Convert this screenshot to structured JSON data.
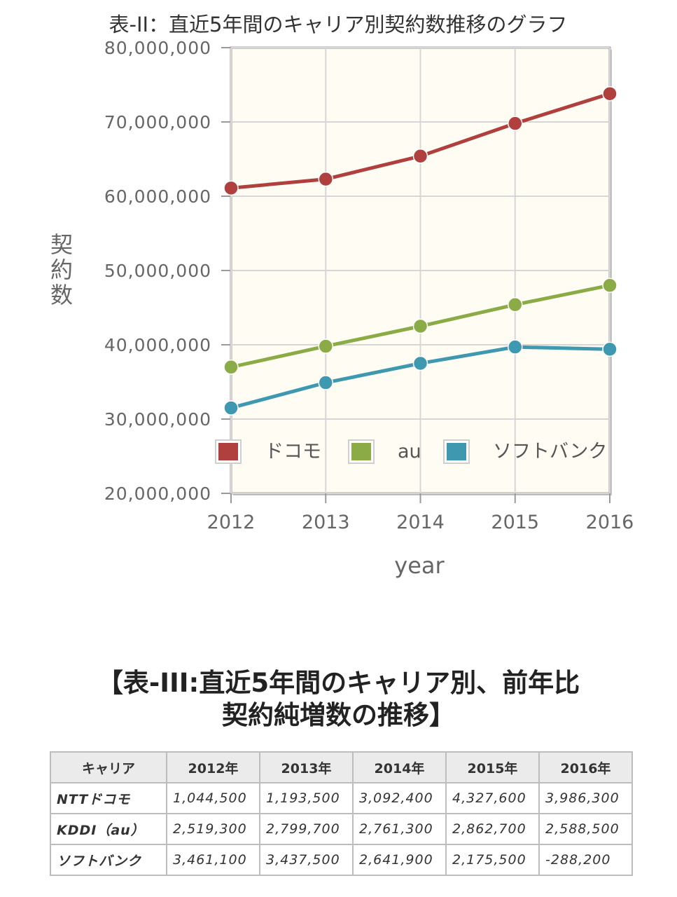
{
  "chart_data": {
    "type": "line",
    "title": "表-II：直近5年間のキャリア別契約数推移のグラフ",
    "xlabel": "year",
    "ylabel": "契約数",
    "x": [
      "2012",
      "2013",
      "2014",
      "2015",
      "2016"
    ],
    "ylim": [
      20000000,
      80000000
    ],
    "yticks": [
      "20,000,000",
      "30,000,000",
      "40,000,000",
      "50,000,000",
      "60,000,000",
      "70,000,000",
      "80,000,000"
    ],
    "grid": true,
    "legend_position": "bottom-center inside plot",
    "series": [
      {
        "name": "ドコモ",
        "color": "#b0403e",
        "values": [
          61100000,
          62300000,
          65400000,
          69800000,
          73800000
        ]
      },
      {
        "name": "au",
        "color": "#8aab45",
        "values": [
          37000000,
          39800000,
          42500000,
          45400000,
          48000000
        ]
      },
      {
        "name": "ソフトバンク",
        "color": "#3d98b0",
        "values": [
          31500000,
          34900000,
          37500000,
          39700000,
          39400000
        ]
      }
    ]
  },
  "table": {
    "heading_line1": "【表-III:直近5年間のキャリア別、前年比",
    "heading_line2": "契約純増数の推移】",
    "headers": [
      "キャリア",
      "2012年",
      "2013年",
      "2014年",
      "2015年",
      "2016年"
    ],
    "rows": [
      [
        "NTTドコモ",
        "1,044,500",
        "1,193,500",
        "3,092,400",
        "4,327,600",
        "3,986,300"
      ],
      [
        "KDDI（au）",
        "2,519,300",
        "2,799,700",
        "2,761,300",
        "2,862,700",
        "2,588,500"
      ],
      [
        "ソフトバンク",
        "3,461,100",
        "3,437,500",
        "2,641,900",
        "2,175,500",
        "-288,200"
      ]
    ]
  }
}
